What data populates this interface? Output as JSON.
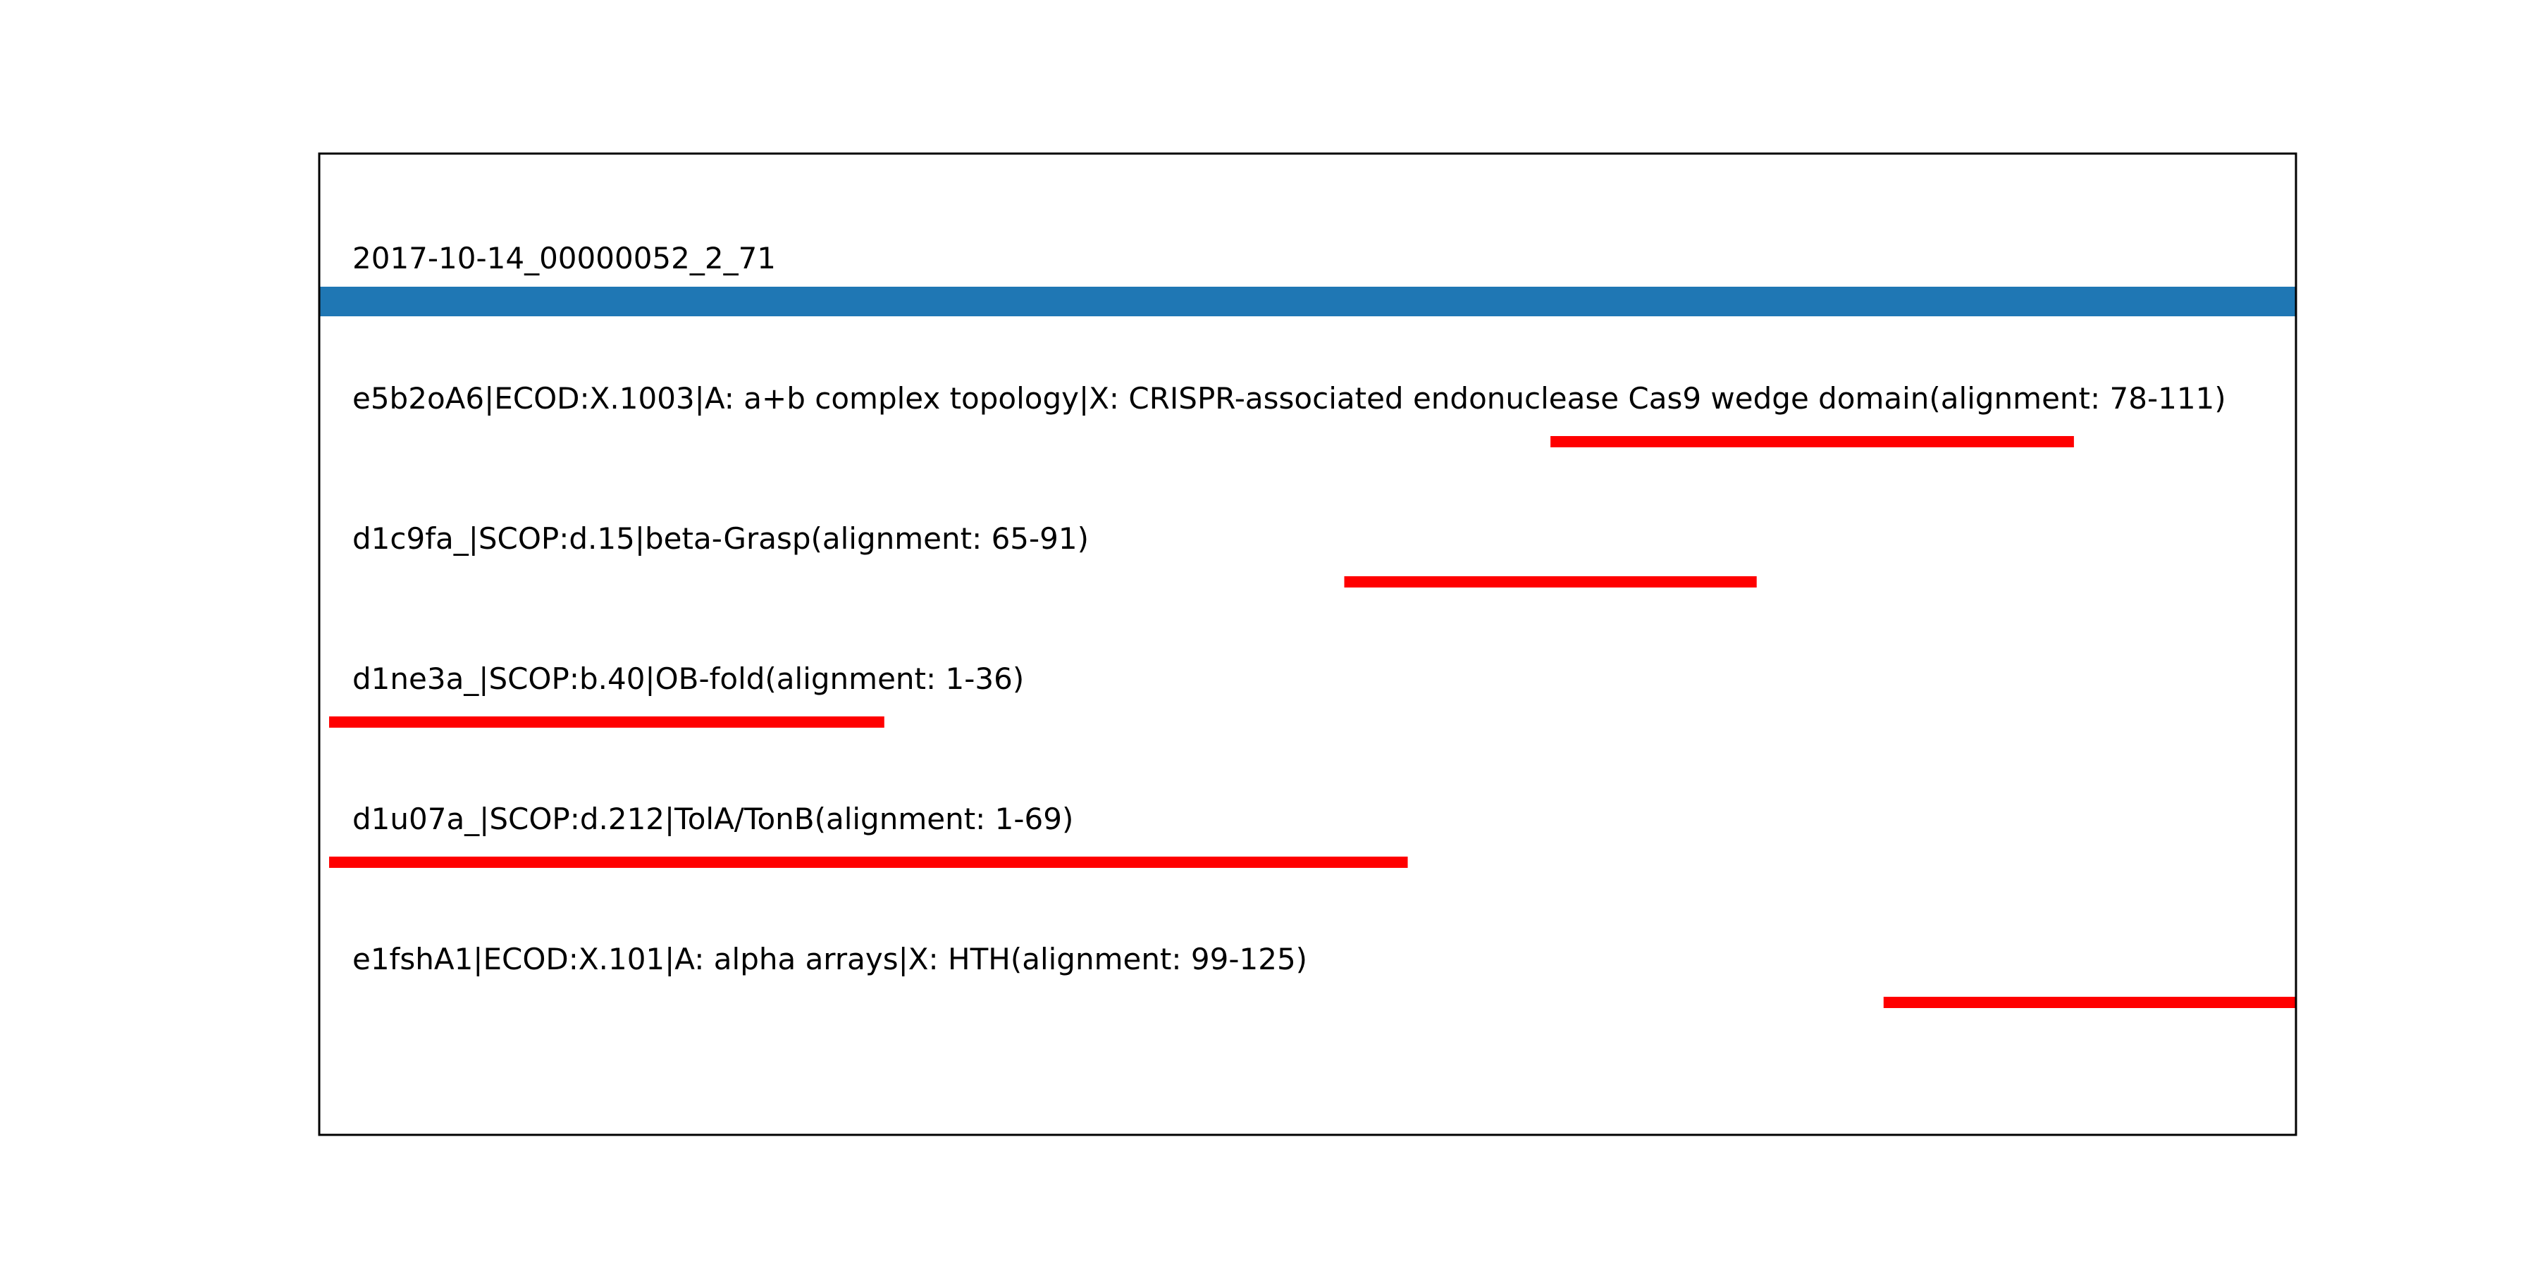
{
  "chart_data": {
    "type": "bar",
    "query": {
      "label": "2017-10-14_00000052_2_71",
      "start": 1,
      "end": 125,
      "color": "#1f77b4"
    },
    "hits": [
      {
        "label": "e5b2oA6|ECOD:X.1003|A: a+b complex topology|X: CRISPR-associated endonuclease Cas9 wedge domain(alignment: 78-111)",
        "start": 78,
        "end": 111
      },
      {
        "label": "d1c9fa_|SCOP:d.15|beta-Grasp(alignment: 65-91)",
        "start": 65,
        "end": 91
      },
      {
        "label": "d1ne3a_|SCOP:b.40|OB-fold(alignment: 1-36)",
        "start": 1,
        "end": 36
      },
      {
        "label": "d1u07a_|SCOP:d.212|TolA/TonB(alignment: 1-69)",
        "start": 1,
        "end": 69
      },
      {
        "label": "e1fshA1|ECOD:X.101|A: alpha arrays|X: HTH(alignment: 99-125)",
        "start": 99,
        "end": 125
      }
    ],
    "hit_color": "#ff0000",
    "title": "",
    "xlabel": "",
    "ylabel": "",
    "grid": false,
    "axis_ticks": false
  }
}
